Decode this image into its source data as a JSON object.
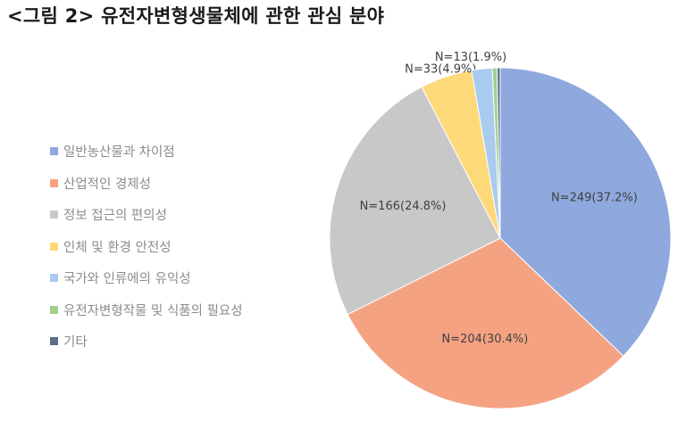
{
  "title": "<그림 2> 유전자변형생물체에 관한 관심 분야",
  "chart_data": {
    "type": "pie",
    "title": "<그림 2> 유전자변형생물체에 관한 관심 분야",
    "legend_position": "left",
    "slices": [
      {
        "label": "일반농산물과 차이점",
        "value": 249,
        "percent": 37.2,
        "data_label": "N=249(37.2%)",
        "color": "#8fa8de"
      },
      {
        "label": "산업적인 경제성",
        "value": 204,
        "percent": 30.4,
        "data_label": "N=204(30.4%)",
        "color": "#f5a283"
      },
      {
        "label": "정보 접근의 편의성",
        "value": 166,
        "percent": 24.8,
        "data_label": "N=166(24.8%)",
        "color": "#c8c8c8"
      },
      {
        "label": "인체 및 환경 안전성",
        "value": 33,
        "percent": 4.9,
        "data_label": "N=33(4.9%)",
        "color": "#fed97a"
      },
      {
        "label": "국가와 인류에의 유익성",
        "value": 13,
        "percent": 1.9,
        "data_label": "N=13(1.9%)",
        "color": "#a9cbef"
      },
      {
        "label": "유전자변형작물 및 식품의 필요성",
        "value": 3,
        "percent": 0.4,
        "data_label": "",
        "color": "#9fd18f"
      },
      {
        "label": "기타",
        "value": 2,
        "percent": 0.3,
        "data_label": "",
        "color": "#5b6f8c"
      }
    ]
  }
}
